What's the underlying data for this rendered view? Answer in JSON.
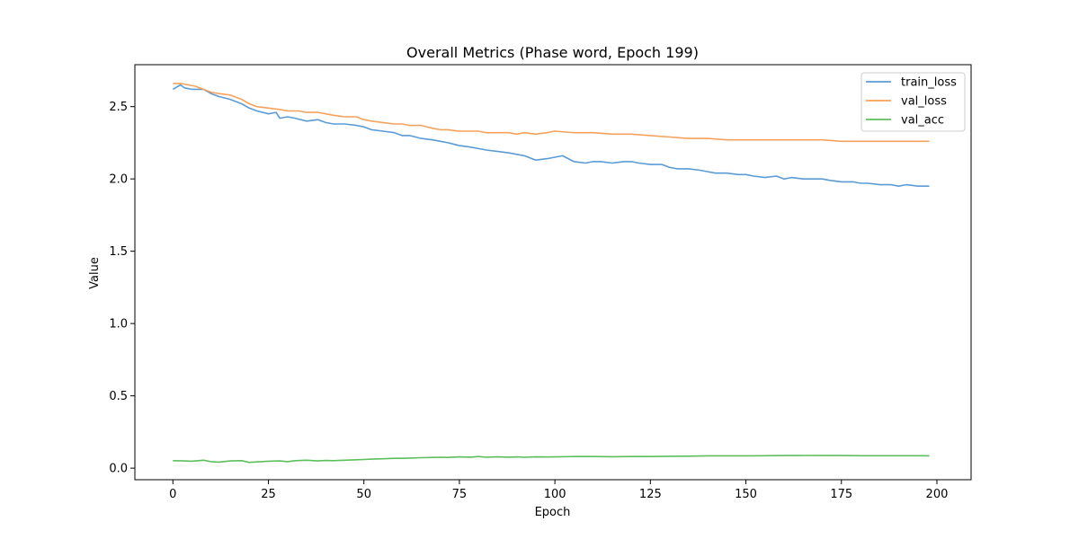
{
  "chart_data": {
    "type": "line",
    "title": "Overall Metrics (Phase word, Epoch 199)",
    "xlabel": "Epoch",
    "ylabel": "Value",
    "xlim": [
      -9.95,
      208.95
    ],
    "ylim": [
      -0.08,
      2.79
    ],
    "xticks": [
      0,
      25,
      50,
      75,
      100,
      125,
      150,
      175,
      200
    ],
    "xtick_labels": [
      "0",
      "25",
      "50",
      "75",
      "100",
      "125",
      "150",
      "175",
      "200"
    ],
    "yticks": [
      0.0,
      0.5,
      1.0,
      1.5,
      2.0,
      2.5
    ],
    "ytick_labels": [
      "0.0",
      "0.5",
      "1.0",
      "1.5",
      "2.0",
      "2.5"
    ],
    "grid": false,
    "legend_position": "top-right",
    "series": [
      {
        "name": "train_loss",
        "color": "#5b9bd5",
        "points": [
          [
            0,
            2.62
          ],
          [
            2,
            2.65
          ],
          [
            3,
            2.63
          ],
          [
            5,
            2.62
          ],
          [
            8,
            2.62
          ],
          [
            10,
            2.59
          ],
          [
            12,
            2.57
          ],
          [
            15,
            2.55
          ],
          [
            18,
            2.52
          ],
          [
            20,
            2.49
          ],
          [
            22,
            2.47
          ],
          [
            25,
            2.45
          ],
          [
            27,
            2.46
          ],
          [
            28,
            2.42
          ],
          [
            30,
            2.43
          ],
          [
            32,
            2.42
          ],
          [
            35,
            2.4
          ],
          [
            38,
            2.41
          ],
          [
            40,
            2.39
          ],
          [
            42,
            2.38
          ],
          [
            45,
            2.38
          ],
          [
            48,
            2.37
          ],
          [
            50,
            2.36
          ],
          [
            52,
            2.34
          ],
          [
            55,
            2.33
          ],
          [
            58,
            2.32
          ],
          [
            60,
            2.3
          ],
          [
            62,
            2.3
          ],
          [
            65,
            2.28
          ],
          [
            68,
            2.27
          ],
          [
            70,
            2.26
          ],
          [
            72,
            2.25
          ],
          [
            75,
            2.23
          ],
          [
            78,
            2.22
          ],
          [
            80,
            2.21
          ],
          [
            82,
            2.2
          ],
          [
            85,
            2.19
          ],
          [
            88,
            2.18
          ],
          [
            90,
            2.17
          ],
          [
            92,
            2.16
          ],
          [
            95,
            2.13
          ],
          [
            98,
            2.14
          ],
          [
            100,
            2.15
          ],
          [
            102,
            2.16
          ],
          [
            105,
            2.12
          ],
          [
            108,
            2.11
          ],
          [
            110,
            2.12
          ],
          [
            112,
            2.12
          ],
          [
            115,
            2.11
          ],
          [
            118,
            2.12
          ],
          [
            120,
            2.12
          ],
          [
            122,
            2.11
          ],
          [
            125,
            2.1
          ],
          [
            128,
            2.1
          ],
          [
            130,
            2.08
          ],
          [
            132,
            2.07
          ],
          [
            135,
            2.07
          ],
          [
            138,
            2.06
          ],
          [
            140,
            2.05
          ],
          [
            142,
            2.04
          ],
          [
            145,
            2.04
          ],
          [
            148,
            2.03
          ],
          [
            150,
            2.03
          ],
          [
            152,
            2.02
          ],
          [
            155,
            2.01
          ],
          [
            158,
            2.02
          ],
          [
            160,
            2.0
          ],
          [
            162,
            2.01
          ],
          [
            165,
            2.0
          ],
          [
            168,
            2.0
          ],
          [
            170,
            2.0
          ],
          [
            172,
            1.99
          ],
          [
            175,
            1.98
          ],
          [
            178,
            1.98
          ],
          [
            180,
            1.97
          ],
          [
            182,
            1.97
          ],
          [
            185,
            1.96
          ],
          [
            188,
            1.96
          ],
          [
            190,
            1.95
          ],
          [
            192,
            1.96
          ],
          [
            195,
            1.95
          ],
          [
            198,
            1.95
          ]
        ]
      },
      {
        "name": "val_loss",
        "color": "#f5a25d",
        "points": [
          [
            0,
            2.66
          ],
          [
            2,
            2.66
          ],
          [
            4,
            2.65
          ],
          [
            6,
            2.64
          ],
          [
            8,
            2.62
          ],
          [
            10,
            2.6
          ],
          [
            12,
            2.59
          ],
          [
            15,
            2.58
          ],
          [
            18,
            2.55
          ],
          [
            20,
            2.52
          ],
          [
            22,
            2.5
          ],
          [
            25,
            2.49
          ],
          [
            28,
            2.48
          ],
          [
            30,
            2.47
          ],
          [
            33,
            2.47
          ],
          [
            35,
            2.46
          ],
          [
            38,
            2.46
          ],
          [
            40,
            2.45
          ],
          [
            42,
            2.44
          ],
          [
            45,
            2.43
          ],
          [
            48,
            2.43
          ],
          [
            50,
            2.41
          ],
          [
            52,
            2.4
          ],
          [
            55,
            2.39
          ],
          [
            58,
            2.38
          ],
          [
            60,
            2.38
          ],
          [
            62,
            2.37
          ],
          [
            65,
            2.37
          ],
          [
            68,
            2.35
          ],
          [
            70,
            2.34
          ],
          [
            72,
            2.34
          ],
          [
            75,
            2.33
          ],
          [
            78,
            2.33
          ],
          [
            80,
            2.33
          ],
          [
            82,
            2.32
          ],
          [
            85,
            2.32
          ],
          [
            88,
            2.32
          ],
          [
            90,
            2.31
          ],
          [
            92,
            2.32
          ],
          [
            95,
            2.31
          ],
          [
            98,
            2.32
          ],
          [
            100,
            2.33
          ],
          [
            105,
            2.32
          ],
          [
            110,
            2.32
          ],
          [
            115,
            2.31
          ],
          [
            120,
            2.31
          ],
          [
            125,
            2.3
          ],
          [
            130,
            2.29
          ],
          [
            135,
            2.28
          ],
          [
            140,
            2.28
          ],
          [
            145,
            2.27
          ],
          [
            150,
            2.27
          ],
          [
            155,
            2.27
          ],
          [
            160,
            2.27
          ],
          [
            165,
            2.27
          ],
          [
            170,
            2.27
          ],
          [
            175,
            2.26
          ],
          [
            180,
            2.26
          ],
          [
            185,
            2.26
          ],
          [
            190,
            2.26
          ],
          [
            195,
            2.26
          ],
          [
            198,
            2.26
          ]
        ]
      },
      {
        "name": "val_acc",
        "color": "#5cbf5c",
        "points": [
          [
            0,
            0.052
          ],
          [
            3,
            0.05
          ],
          [
            5,
            0.048
          ],
          [
            8,
            0.055
          ],
          [
            10,
            0.045
          ],
          [
            12,
            0.042
          ],
          [
            15,
            0.05
          ],
          [
            18,
            0.052
          ],
          [
            20,
            0.04
          ],
          [
            22,
            0.043
          ],
          [
            25,
            0.048
          ],
          [
            28,
            0.05
          ],
          [
            30,
            0.045
          ],
          [
            32,
            0.052
          ],
          [
            35,
            0.055
          ],
          [
            38,
            0.05
          ],
          [
            40,
            0.053
          ],
          [
            42,
            0.052
          ],
          [
            45,
            0.055
          ],
          [
            48,
            0.058
          ],
          [
            50,
            0.06
          ],
          [
            52,
            0.062
          ],
          [
            55,
            0.065
          ],
          [
            58,
            0.068
          ],
          [
            60,
            0.068
          ],
          [
            62,
            0.07
          ],
          [
            65,
            0.072
          ],
          [
            68,
            0.074
          ],
          [
            70,
            0.075
          ],
          [
            72,
            0.074
          ],
          [
            75,
            0.078
          ],
          [
            78,
            0.076
          ],
          [
            80,
            0.08
          ],
          [
            82,
            0.075
          ],
          [
            85,
            0.078
          ],
          [
            88,
            0.076
          ],
          [
            90,
            0.078
          ],
          [
            92,
            0.075
          ],
          [
            95,
            0.078
          ],
          [
            98,
            0.077
          ],
          [
            100,
            0.078
          ],
          [
            105,
            0.08
          ],
          [
            110,
            0.08
          ],
          [
            115,
            0.079
          ],
          [
            120,
            0.08
          ],
          [
            125,
            0.08
          ],
          [
            130,
            0.082
          ],
          [
            135,
            0.083
          ],
          [
            140,
            0.085
          ],
          [
            145,
            0.085
          ],
          [
            150,
            0.085
          ],
          [
            155,
            0.086
          ],
          [
            160,
            0.087
          ],
          [
            165,
            0.088
          ],
          [
            170,
            0.087
          ],
          [
            175,
            0.087
          ],
          [
            180,
            0.086
          ],
          [
            185,
            0.086
          ],
          [
            190,
            0.086
          ],
          [
            195,
            0.086
          ],
          [
            198,
            0.085
          ]
        ]
      }
    ]
  }
}
